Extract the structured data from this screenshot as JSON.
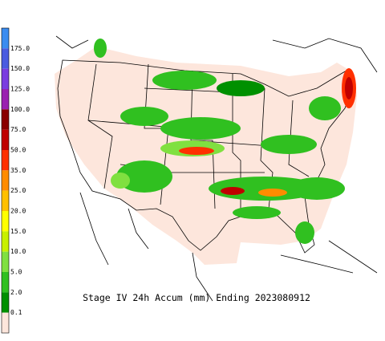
{
  "title": "Stage IV 24h Accum (mm) Ending 2023080912",
  "colorbar": {
    "labels": [
      "175.0",
      "150.0",
      "125.0",
      "100.0",
      "75.0",
      "50.0",
      "35.0",
      "25.0",
      "20.0",
      "15.0",
      "10.0",
      "5.0",
      "2.0",
      "0.1"
    ],
    "colors": [
      "#3a8cf0",
      "#4a5ce0",
      "#7a3ce0",
      "#9a20b0",
      "#8a0000",
      "#c00000",
      "#ff3000",
      "#ff8c00",
      "#ffc000",
      "#ffff00",
      "#c8f000",
      "#80e040",
      "#30c020",
      "#009000",
      "#fde6dc"
    ]
  }
}
